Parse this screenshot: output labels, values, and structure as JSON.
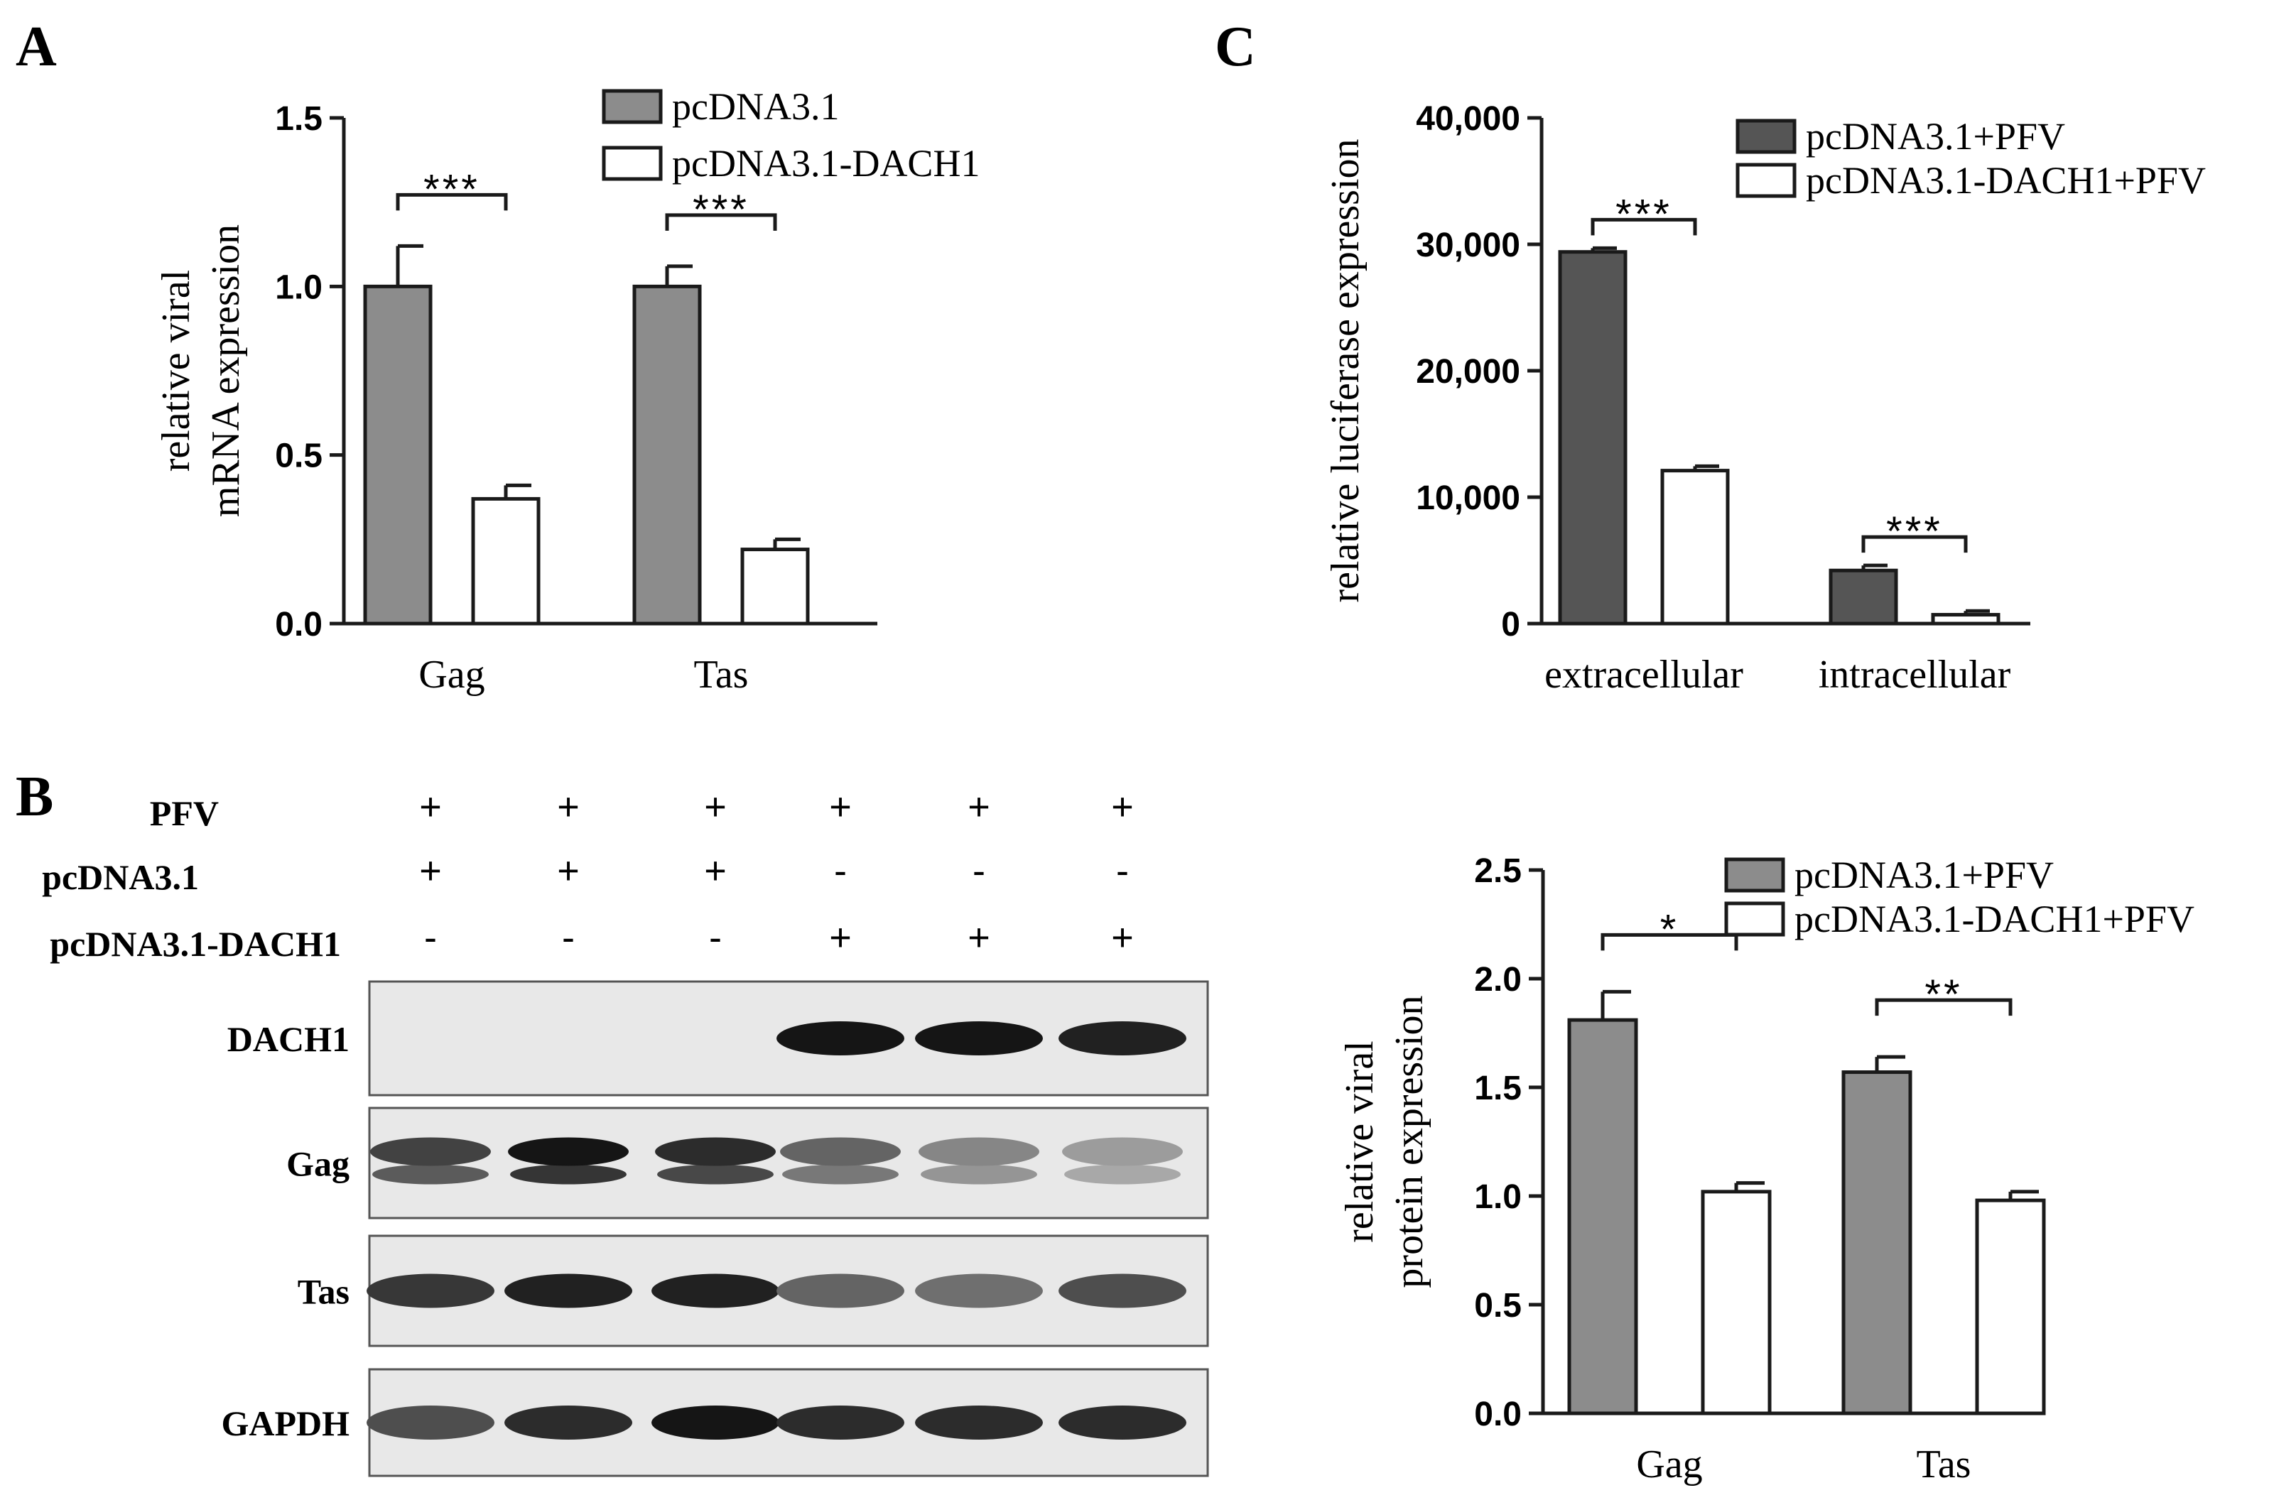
{
  "panels": {
    "A": "A",
    "B": "B",
    "C": "C"
  },
  "colors": {
    "gray": "#8c8c8c",
    "dark": "#555555",
    "white": "#ffffff",
    "axis": "#1a1a1a"
  },
  "chart_data": [
    {
      "id": "A",
      "type": "bar",
      "categories": [
        "Gag",
        "Tas"
      ],
      "series": [
        {
          "name": "pcDNA3.1",
          "values": [
            1.0,
            1.0
          ],
          "errors": [
            0.12,
            0.06
          ],
          "color": "#8c8c8c"
        },
        {
          "name": "pcDNA3.1-DACH1",
          "values": [
            0.37,
            0.22
          ],
          "errors": [
            0.04,
            0.03
          ],
          "color": "#ffffff"
        }
      ],
      "ylabel": [
        "relative viral",
        "mRNA expression"
      ],
      "ylim": [
        0,
        1.5
      ],
      "yticks": [
        0.0,
        0.5,
        1.0,
        1.5
      ],
      "ytick_labels": [
        "0.0",
        "0.5",
        "1.0",
        "1.5"
      ],
      "significance": [
        "***",
        "***"
      ],
      "legend": "top-right"
    },
    {
      "id": "C",
      "type": "bar",
      "categories": [
        "extracellular",
        "intracellular"
      ],
      "series": [
        {
          "name": "pcDNA3.1+PFV",
          "values": [
            29400,
            4200
          ],
          "errors": [
            300,
            400
          ],
          "color": "#555555"
        },
        {
          "name": "pcDNA3.1-DACH1+PFV",
          "values": [
            12100,
            700
          ],
          "errors": [
            350,
            300
          ],
          "color": "#ffffff"
        }
      ],
      "ylabel": [
        "relative luciferase expression"
      ],
      "ylim": [
        0,
        40000
      ],
      "yticks": [
        0,
        10000,
        20000,
        30000,
        40000
      ],
      "ytick_labels": [
        "0",
        "10,000",
        "20,000",
        "30,000",
        "40,000"
      ],
      "significance": [
        "***",
        "***"
      ],
      "legend": "top-right"
    },
    {
      "id": "B-quant",
      "type": "bar",
      "categories": [
        "Gag",
        "Tas"
      ],
      "series": [
        {
          "name": "pcDNA3.1+PFV",
          "values": [
            1.81,
            1.57
          ],
          "errors": [
            0.13,
            0.07
          ],
          "color": "#8c8c8c"
        },
        {
          "name": "pcDNA3.1-DACH1+PFV",
          "values": [
            1.02,
            0.98
          ],
          "errors": [
            0.04,
            0.04
          ],
          "color": "#ffffff"
        }
      ],
      "ylabel": [
        "relative viral",
        "protein expression"
      ],
      "ylim": [
        0,
        2.5
      ],
      "yticks": [
        0.0,
        0.5,
        1.0,
        1.5,
        2.0,
        2.5
      ],
      "ytick_labels": [
        "0.0",
        "0.5",
        "1.0",
        "1.5",
        "2.0",
        "2.5"
      ],
      "significance": [
        "*",
        "**"
      ],
      "legend": "top-right"
    }
  ],
  "blot": {
    "conditions": [
      {
        "label": "PFV",
        "marks": [
          "+",
          "+",
          "+",
          "+",
          "+",
          "+"
        ]
      },
      {
        "label": "pcDNA3.1",
        "marks": [
          "+",
          "+",
          "+",
          "-",
          "-",
          "-"
        ]
      },
      {
        "label": "pcDNA3.1-DACH1",
        "marks": [
          "-",
          "-",
          "-",
          "+",
          "+",
          "+"
        ]
      }
    ],
    "rows": [
      {
        "label": "DACH1",
        "intensity": [
          0,
          0,
          0,
          0.95,
          0.95,
          0.9
        ],
        "double": false
      },
      {
        "label": "Gag",
        "intensity": [
          0.75,
          0.95,
          0.85,
          0.6,
          0.45,
          0.35
        ],
        "double": true
      },
      {
        "label": "Tas",
        "intensity": [
          0.8,
          0.9,
          0.9,
          0.6,
          0.55,
          0.7
        ],
        "double": false
      },
      {
        "label": "GAPDH",
        "intensity": [
          0.7,
          0.85,
          0.95,
          0.85,
          0.85,
          0.85
        ],
        "double": false
      }
    ]
  }
}
